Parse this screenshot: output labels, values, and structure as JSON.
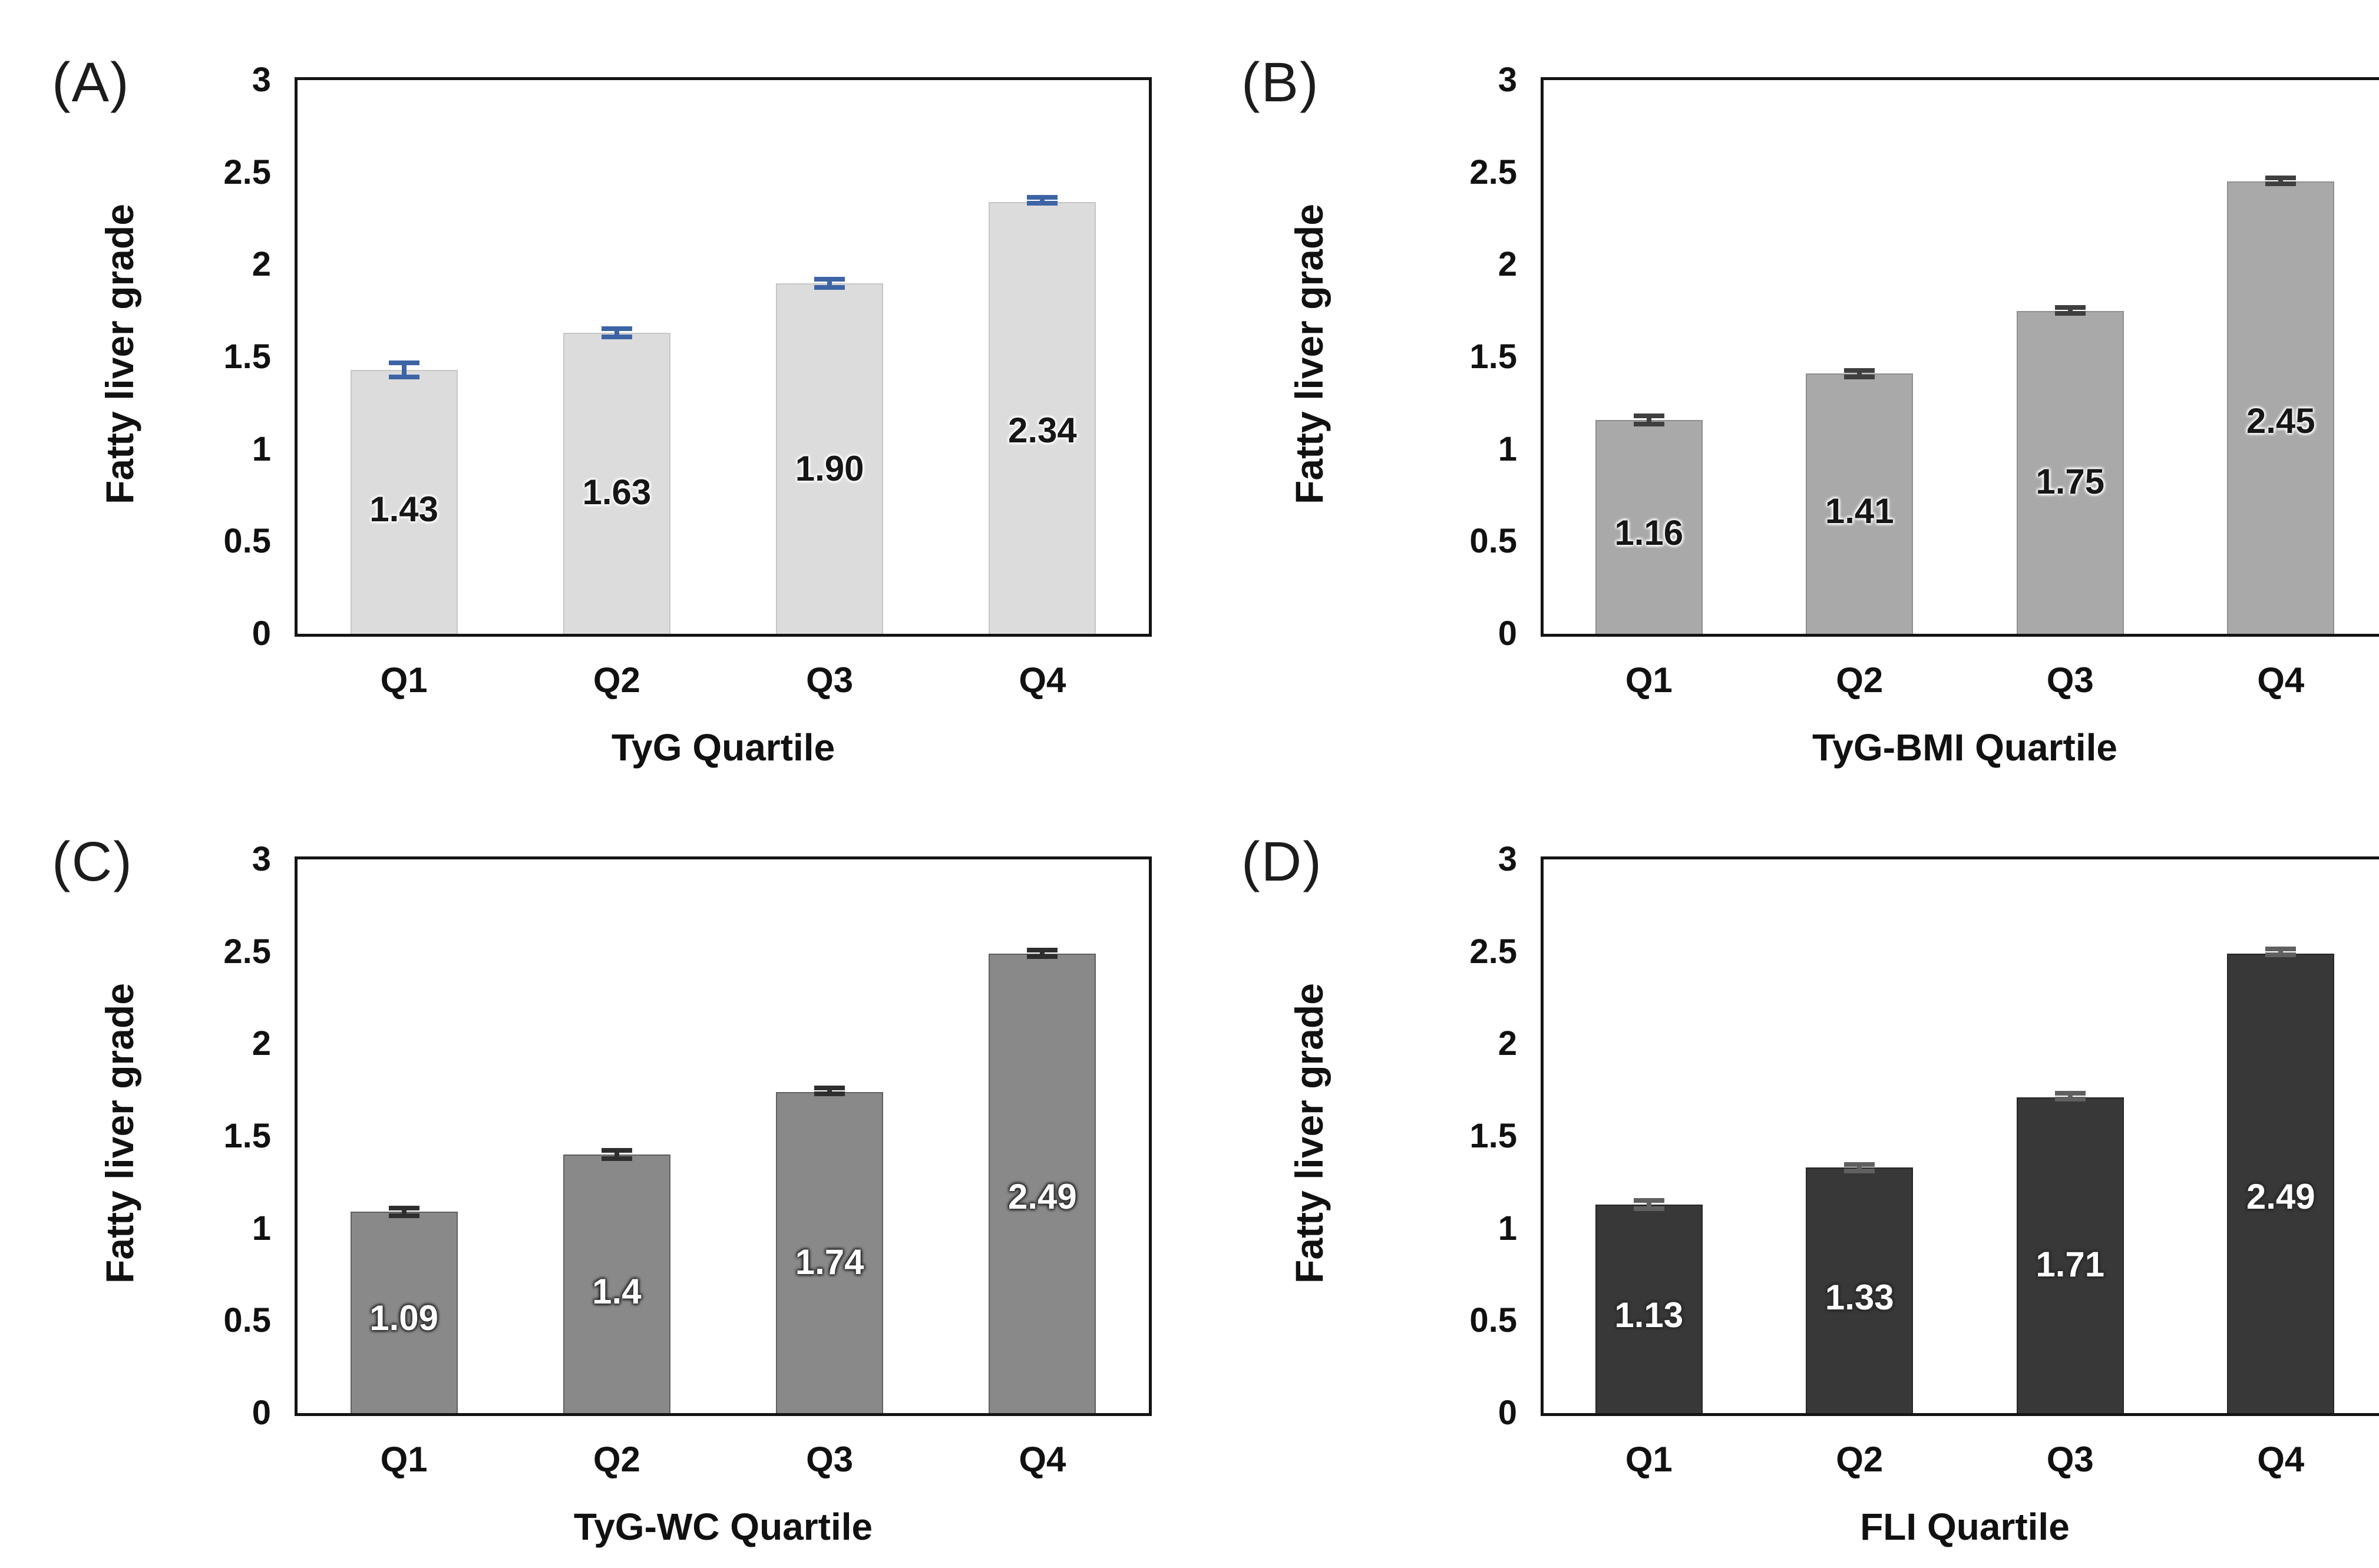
{
  "figure": {
    "shared_ylabel": "Fatty liver grade",
    "background_color": "#ffffff",
    "frame_color": "#141414"
  },
  "chart_data": [
    {
      "panel_label": "(A)",
      "type": "bar",
      "title": "",
      "xlabel": "TyG Quartile",
      "ylabel": "Fatty liver grade",
      "categories": [
        "Q1",
        "Q2",
        "Q3",
        "Q4"
      ],
      "values": [
        1.43,
        1.63,
        1.9,
        2.34
      ],
      "value_labels": [
        "1.43",
        "1.63",
        "1.90",
        "2.34"
      ],
      "errors": [
        0.05,
        0.035,
        0.035,
        0.02
      ],
      "ylim": [
        0,
        3
      ],
      "yticks": [
        0,
        0.5,
        1,
        1.5,
        2,
        2.5,
        3
      ],
      "ytick_labels": [
        "0",
        "0.5",
        "1",
        "1.5",
        "2",
        "2.5",
        "3"
      ],
      "grid": false,
      "legend": "none",
      "bar_color": "#dcdcdc",
      "bar_border_color": "#c6c6c6",
      "error_color": "#3d64a5",
      "value_label_halo": "halo-light"
    },
    {
      "panel_label": "(B)",
      "type": "bar",
      "title": "",
      "xlabel": "TyG-BMI Quartile",
      "ylabel": "Fatty liver grade",
      "categories": [
        "Q1",
        "Q2",
        "Q3",
        "Q4"
      ],
      "values": [
        1.16,
        1.41,
        1.75,
        2.45
      ],
      "value_labels": [
        "1.16",
        "1.41",
        "1.75",
        "2.45"
      ],
      "errors": [
        0.035,
        0.03,
        0.025,
        0.025
      ],
      "ylim": [
        0,
        3
      ],
      "yticks": [
        0,
        0.5,
        1,
        1.5,
        2,
        2.5,
        3
      ],
      "ytick_labels": [
        "0",
        "0.5",
        "1",
        "1.5",
        "2",
        "2.5",
        "3"
      ],
      "grid": false,
      "legend": "none",
      "bar_color": "#a9a9a9",
      "bar_border_color": "#8e8e8e",
      "error_color": "#3f3f3f",
      "value_label_halo": "halo-light"
    },
    {
      "panel_label": "(C)",
      "type": "bar",
      "title": "",
      "xlabel": "TyG-WC Quartile",
      "ylabel": "Fatty liver grade",
      "categories": [
        "Q1",
        "Q2",
        "Q3",
        "Q4"
      ],
      "values": [
        1.09,
        1.4,
        1.74,
        2.49
      ],
      "value_labels": [
        "1.09",
        "1.4",
        "1.74",
        "2.49"
      ],
      "errors": [
        0.035,
        0.035,
        0.022,
        0.03
      ],
      "ylim": [
        0,
        3
      ],
      "yticks": [
        0,
        0.5,
        1,
        1.5,
        2,
        2.5,
        3
      ],
      "ytick_labels": [
        "0",
        "0.5",
        "1",
        "1.5",
        "2",
        "2.5",
        "3"
      ],
      "grid": false,
      "legend": "none",
      "bar_color": "#898989",
      "bar_border_color": "#5f5f5f",
      "error_color": "#2e2e2e",
      "value_label_halo": "halo-dark"
    },
    {
      "panel_label": "(D)",
      "type": "bar",
      "title": "",
      "xlabel": "FLI Quartile",
      "ylabel": "Fatty liver grade",
      "categories": [
        "Q1",
        "Q2",
        "Q3",
        "Q4"
      ],
      "values": [
        1.13,
        1.33,
        1.71,
        2.49
      ],
      "value_labels": [
        "1.13",
        "1.33",
        "1.71",
        "2.49"
      ],
      "errors": [
        0.035,
        0.03,
        0.022,
        0.02
      ],
      "ylim": [
        0,
        3
      ],
      "yticks": [
        0,
        0.5,
        1,
        1.5,
        2,
        2.5,
        3
      ],
      "ytick_labels": [
        "0",
        "0.5",
        "1",
        "1.5",
        "2",
        "2.5",
        "3"
      ],
      "grid": false,
      "legend": "none",
      "bar_color": "#383838",
      "bar_border_color": "#262626",
      "error_color": "#606060",
      "value_label_halo": "halo-dark"
    }
  ]
}
